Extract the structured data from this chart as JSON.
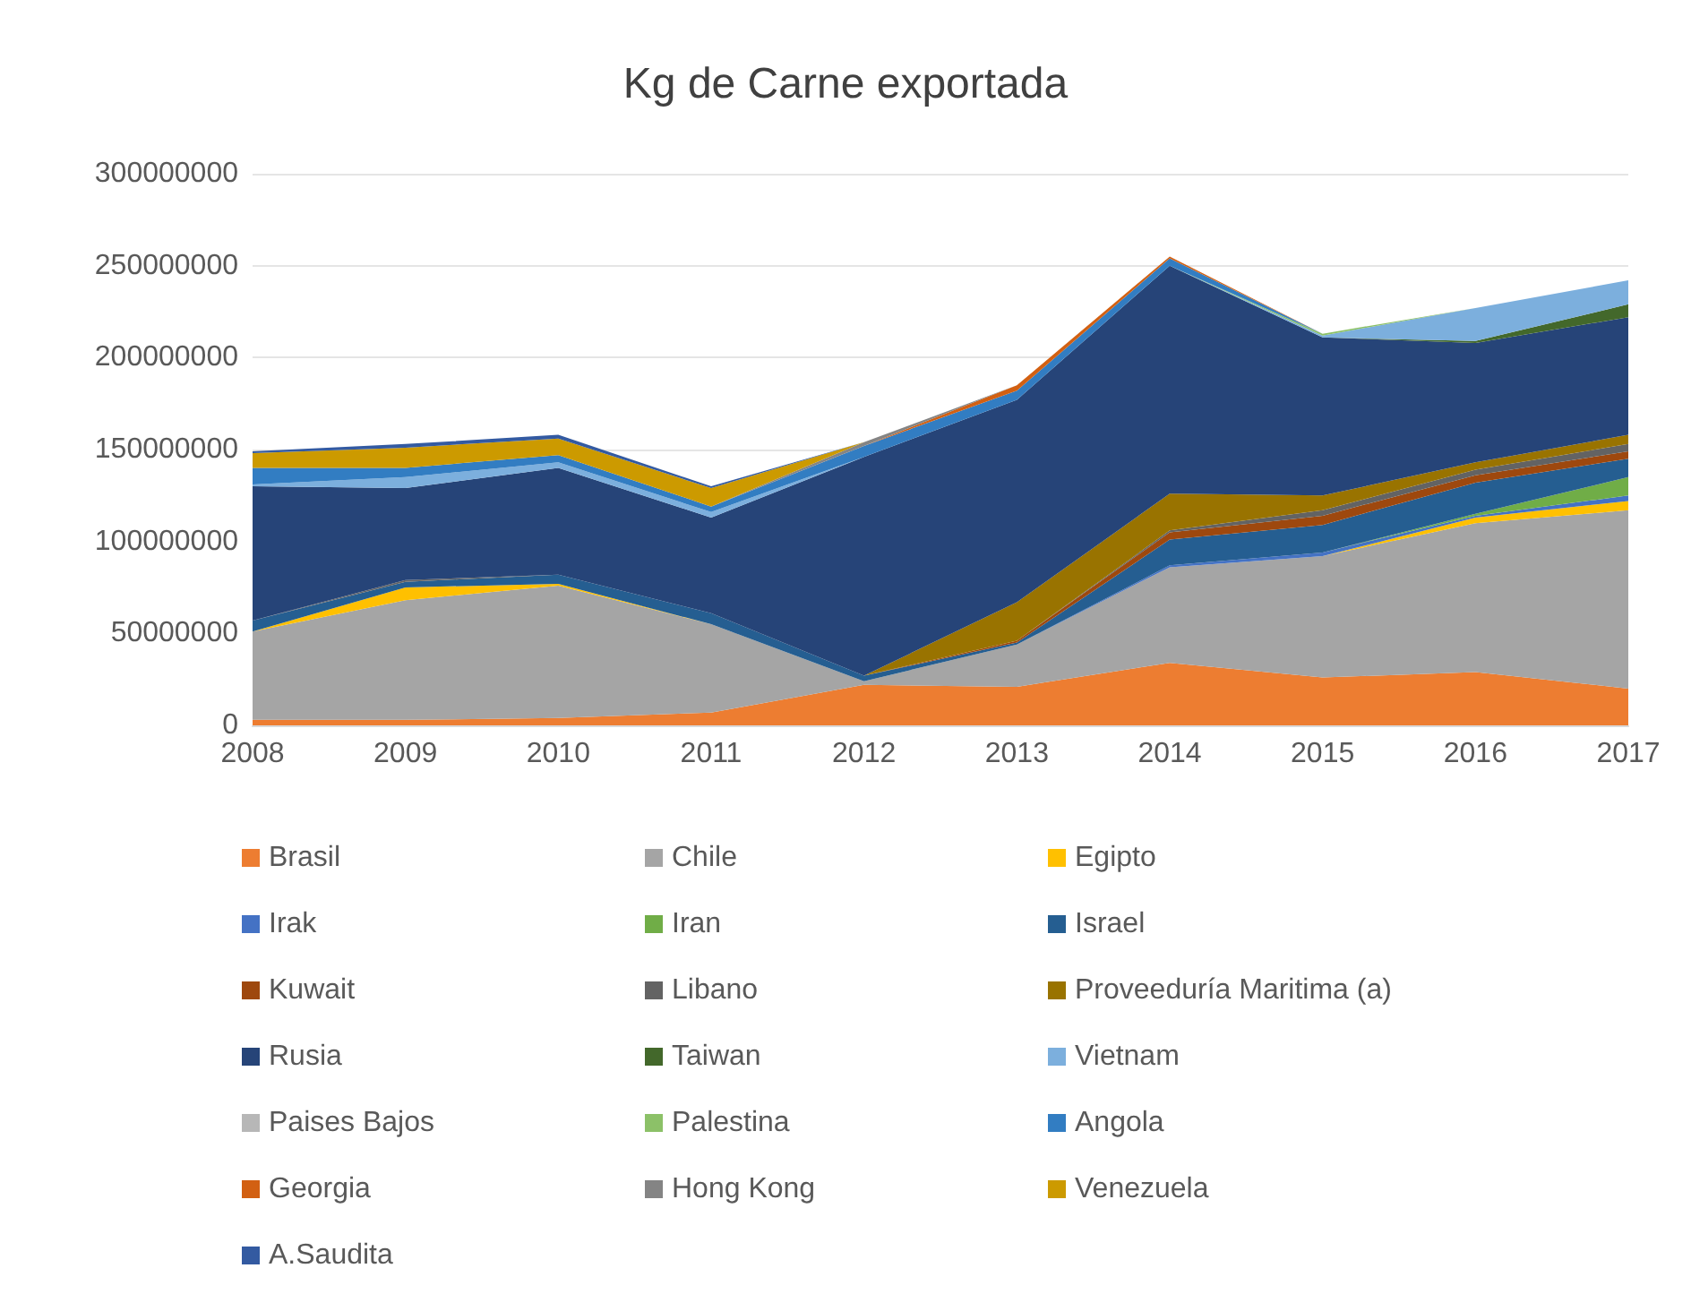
{
  "chart_data": {
    "type": "area",
    "title": "Kg de Carne exportada",
    "stacked": true,
    "grid": "y",
    "legend": "bottom",
    "categories": [
      "2008",
      "2009",
      "2010",
      "2011",
      "2012",
      "2013",
      "2014",
      "2015",
      "2016",
      "2017"
    ],
    "ylim": [
      0,
      300000000
    ],
    "yticks": [
      0,
      50000000,
      100000000,
      150000000,
      200000000,
      250000000,
      300000000
    ],
    "series": [
      {
        "name": "Brasil",
        "color": "#ed7d31",
        "values": [
          3000000,
          3000000,
          4000000,
          7000000,
          22000000,
          21000000,
          34000000,
          26000000,
          29000000,
          20000000
        ]
      },
      {
        "name": "Chile",
        "color": "#a5a5a5",
        "values": [
          48000000,
          65000000,
          72000000,
          48000000,
          2000000,
          23000000,
          52000000,
          66000000,
          81000000,
          97000000
        ]
      },
      {
        "name": "Egipto",
        "color": "#ffc000",
        "values": [
          0,
          7000000,
          1000000,
          0,
          null,
          null,
          null,
          0,
          3000000,
          5000000
        ]
      },
      {
        "name": "Irak",
        "color": "#4472c4",
        "values": [
          null,
          null,
          null,
          null,
          null,
          0,
          1000000,
          2000000,
          1000000,
          3000000
        ]
      },
      {
        "name": "Iran",
        "color": "#70ad47",
        "values": [
          null,
          null,
          null,
          null,
          null,
          null,
          null,
          0,
          1000000,
          10000000
        ]
      },
      {
        "name": "Israel",
        "color": "#255e91",
        "values": [
          6000000,
          3000000,
          5000000,
          6000000,
          3000000,
          1000000,
          14000000,
          15000000,
          17000000,
          10000000
        ]
      },
      {
        "name": "Kuwait",
        "color": "#9e480e",
        "values": [
          null,
          null,
          null,
          null,
          0,
          1000000,
          4000000,
          5000000,
          4000000,
          4000000
        ]
      },
      {
        "name": "Libano",
        "color": "#636363",
        "values": [
          0,
          1000000,
          0,
          null,
          null,
          0,
          1000000,
          3000000,
          3000000,
          4000000
        ]
      },
      {
        "name": "Proveeduría Maritima (a)",
        "color": "#997300",
        "values": [
          null,
          null,
          null,
          null,
          0,
          21000000,
          20000000,
          8000000,
          4000000,
          5000000
        ]
      },
      {
        "name": "Rusia",
        "color": "#264478",
        "values": [
          73000000,
          50000000,
          58000000,
          52000000,
          119000000,
          110000000,
          124000000,
          86000000,
          65000000,
          64000000
        ]
      },
      {
        "name": "Taiwan",
        "color": "#43682b",
        "values": [
          null,
          null,
          null,
          null,
          null,
          null,
          null,
          0,
          1000000,
          7000000
        ]
      },
      {
        "name": "Vietnam",
        "color": "#7cafdd",
        "values": [
          1000000,
          6000000,
          3000000,
          3000000,
          0,
          null,
          0,
          1000000,
          18000000,
          13000000
        ]
      },
      {
        "name": "Paises Bajos",
        "color": "#b7b7b7",
        "values": [
          null,
          null,
          null,
          null,
          null,
          null,
          null,
          null,
          null,
          null
        ]
      },
      {
        "name": "Palestina",
        "color": "#8cc168",
        "values": [
          null,
          null,
          null,
          null,
          null,
          null,
          0,
          1000000,
          0,
          null
        ]
      },
      {
        "name": "Angola",
        "color": "#327dc2",
        "values": [
          9000000,
          5000000,
          4000000,
          3000000,
          6000000,
          5000000,
          4000000,
          0,
          null,
          null
        ]
      },
      {
        "name": "Georgia",
        "color": "#d26012",
        "values": [
          null,
          null,
          null,
          null,
          0,
          3000000,
          1000000,
          0,
          null,
          null
        ]
      },
      {
        "name": "Hong Kong",
        "color": "#848484",
        "values": [
          null,
          null,
          null,
          0,
          2000000,
          0,
          null,
          null,
          null,
          null
        ]
      },
      {
        "name": "Venezuela",
        "color": "#cc9a00",
        "values": [
          8000000,
          11000000,
          9000000,
          10000000,
          0,
          null,
          null,
          null,
          null,
          null
        ]
      },
      {
        "name": "A.Saudita",
        "color": "#335aa1",
        "values": [
          1000000,
          2000000,
          2000000,
          1000000,
          0,
          null,
          null,
          null,
          null,
          null
        ]
      }
    ]
  }
}
